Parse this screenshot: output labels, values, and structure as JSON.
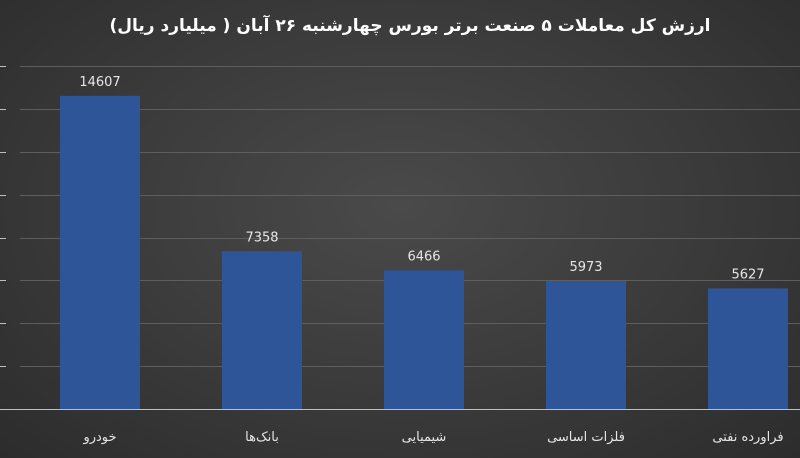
{
  "chart_data": {
    "type": "bar",
    "title": "ارزش کل معاملات ۵ صنعت برتر بورس چهارشنبه ۲۶ آبان ( میلیارد ریال)",
    "categories": [
      "خودرو",
      "بانک‌ها",
      "شیمیایی",
      "فلزات اساسی",
      "فراورده نفتی"
    ],
    "values": [
      14607,
      7358,
      6466,
      5973,
      5627
    ],
    "ylim": [
      0,
      16000
    ],
    "grid": true,
    "bar_color": "#2e5597",
    "background_color": "#3a3a3a"
  }
}
